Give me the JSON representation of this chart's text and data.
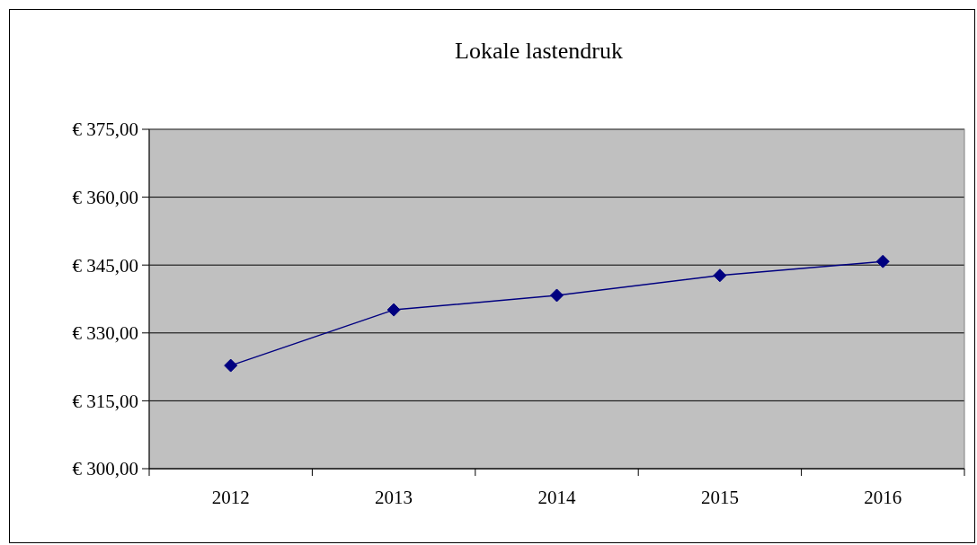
{
  "chart_data": {
    "type": "line",
    "title": "Lokale lastendruk",
    "categories": [
      "2012",
      "2013",
      "2014",
      "2015",
      "2016"
    ],
    "series": [
      {
        "color": "#000080",
        "values": [
          322.8,
          335.1,
          338.3,
          342.7,
          345.8
        ]
      }
    ],
    "ylim": [
      300,
      375
    ],
    "yticks": [
      {
        "value": 300,
        "label": "€ 300,00"
      },
      {
        "value": 315,
        "label": "€ 315,00"
      },
      {
        "value": 330,
        "label": "€ 330,00"
      },
      {
        "value": 345,
        "label": "€ 345,00"
      },
      {
        "value": 360,
        "label": "€ 360,00"
      },
      {
        "value": 375,
        "label": "€ 375,00"
      }
    ],
    "grid": "y",
    "marker": "diamond"
  }
}
